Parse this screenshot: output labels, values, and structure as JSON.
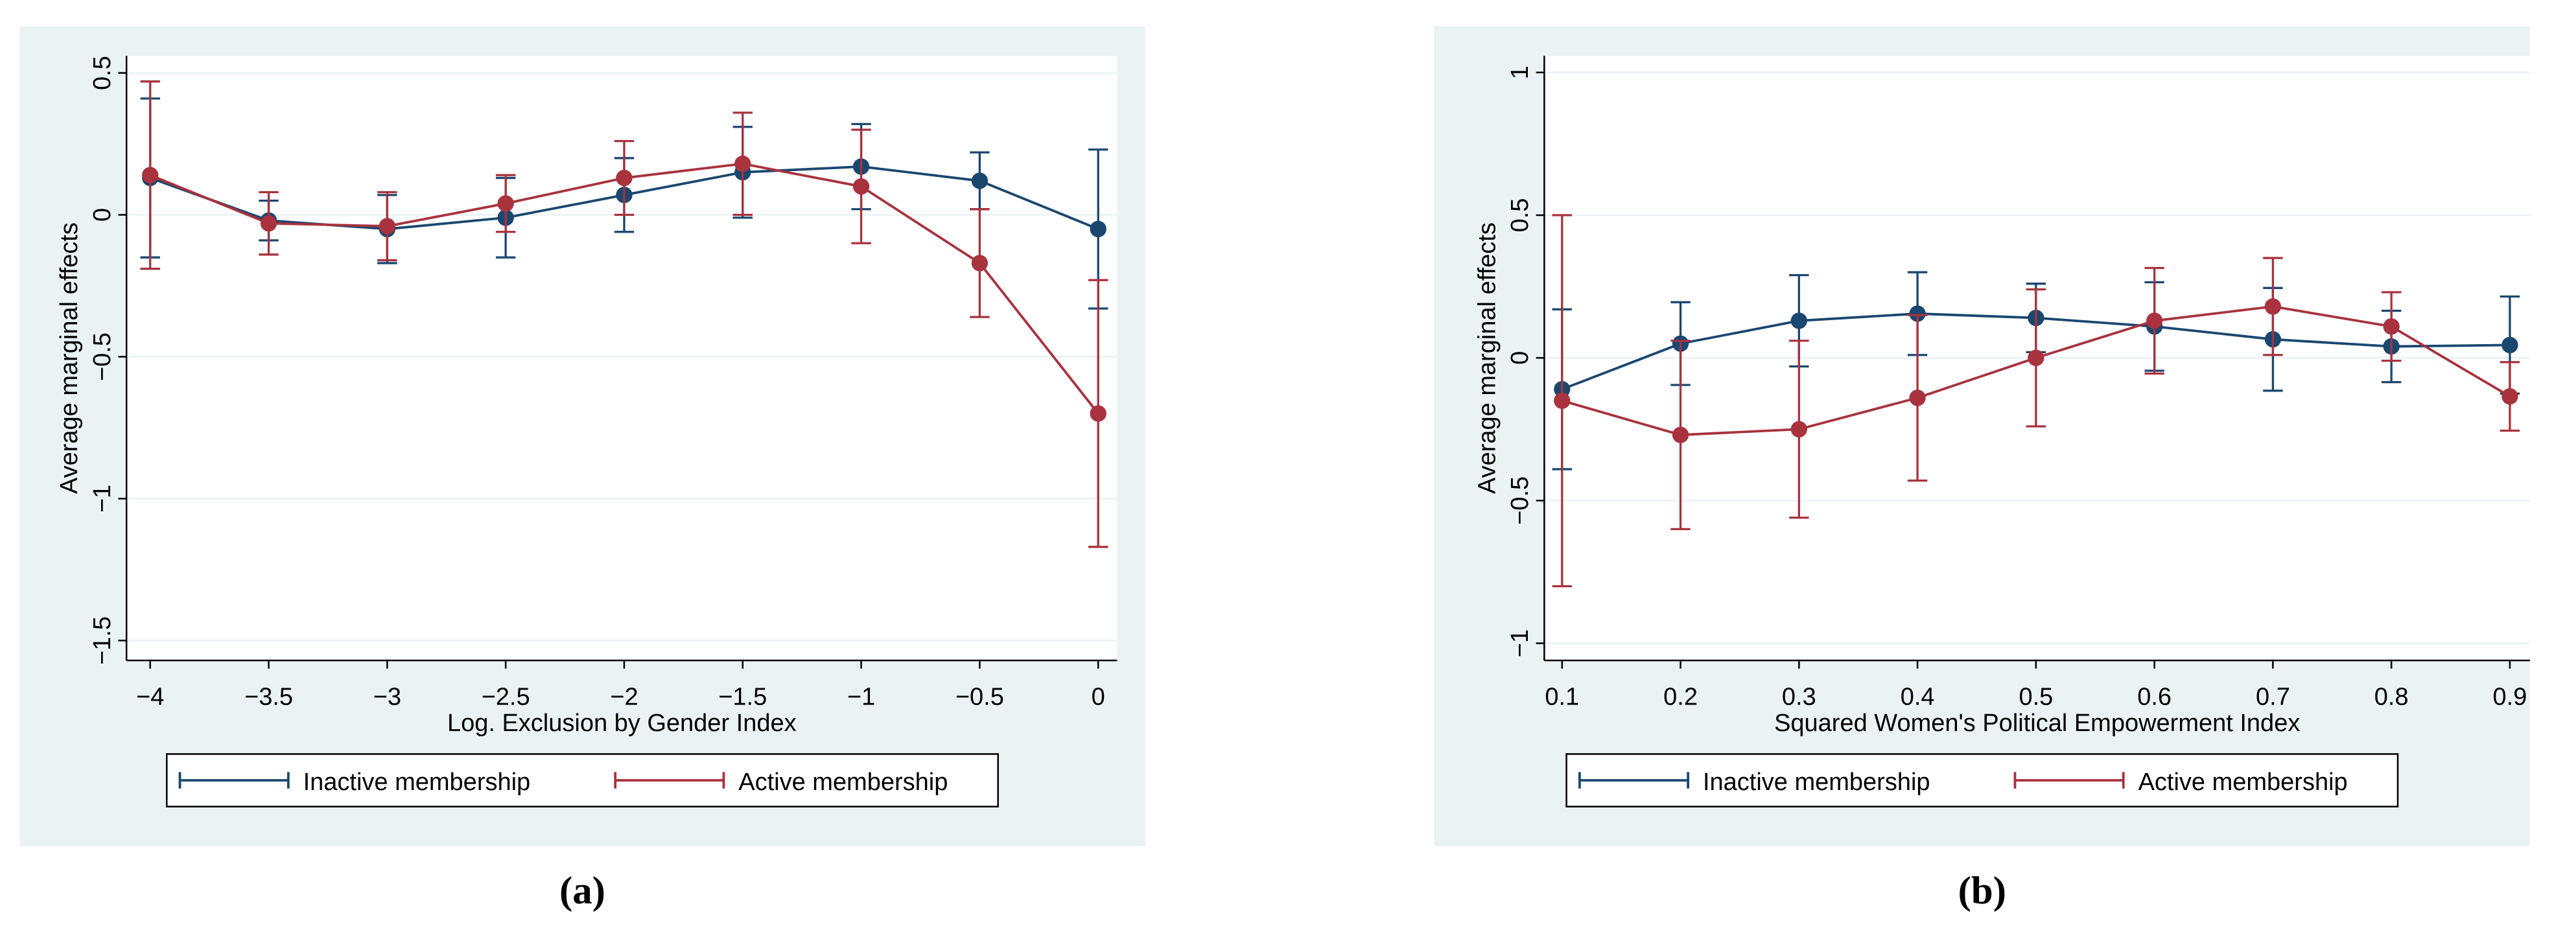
{
  "chart_data": [
    {
      "type": "errorbar-line",
      "caption": "(a)",
      "xlabel": "Log. Exclusion by Gender Index",
      "ylabel": "Average marginal effects",
      "x": [
        -4,
        -3.5,
        -3,
        -2.5,
        -2,
        -1.5,
        -1,
        -0.5,
        0
      ],
      "series": [
        {
          "name": "Inactive membership",
          "color": "#1a476f",
          "values": [
            0.13,
            -0.02,
            -0.05,
            -0.01,
            0.07,
            0.15,
            0.17,
            0.12,
            -0.05
          ],
          "errors": [
            0.28,
            0.07,
            0.12,
            0.14,
            0.13,
            0.16,
            0.15,
            0.1,
            0.28
          ]
        },
        {
          "name": "Active membership",
          "color": "#a8323e",
          "values": [
            0.14,
            -0.03,
            -0.04,
            0.04,
            0.13,
            0.18,
            0.1,
            -0.17,
            -0.7
          ],
          "errors": [
            0.33,
            0.11,
            0.12,
            0.1,
            0.13,
            0.18,
            0.2,
            0.19,
            0.47
          ]
        }
      ],
      "xlim": [
        -4.1,
        0.08
      ],
      "ylim": [
        -1.57,
        0.56
      ],
      "xticks": [
        {
          "value": -4,
          "label": "−4"
        },
        {
          "value": -3.5,
          "label": "−3.5"
        },
        {
          "value": -3,
          "label": "−3"
        },
        {
          "value": -2.5,
          "label": "−2.5"
        },
        {
          "value": -2,
          "label": "−2"
        },
        {
          "value": -1.5,
          "label": "−1.5"
        },
        {
          "value": -1,
          "label": "−1"
        },
        {
          "value": -0.5,
          "label": "−0.5"
        },
        0
      ],
      "yticks": [
        0.5,
        0,
        {
          "value": -0.5,
          "label": "−0.5"
        },
        {
          "value": -1,
          "label": "−1"
        },
        {
          "value": -1.5,
          "label": "−1.5"
        }
      ],
      "grid": true,
      "legend": "bottom"
    },
    {
      "type": "errorbar-line",
      "caption": "(b)",
      "xlabel": "Squared Women's Political Empowerment Index",
      "ylabel": "Average marginal effects",
      "x": [
        0.1,
        0.2,
        0.3,
        0.4,
        0.5,
        0.6,
        0.7,
        0.8,
        0.9
      ],
      "series": [
        {
          "name": "Inactive membership",
          "color": "#1a476f",
          "values": [
            -0.11,
            0.05,
            0.13,
            0.155,
            0.14,
            0.11,
            0.065,
            0.04,
            0.045
          ],
          "errors": [
            0.28,
            0.145,
            0.16,
            0.145,
            0.12,
            0.155,
            0.18,
            0.125,
            0.17
          ]
        },
        {
          "name": "Active membership",
          "color": "#a8323e",
          "values": [
            -0.15,
            -0.27,
            -0.25,
            -0.14,
            0,
            0.13,
            0.18,
            0.11,
            -0.135
          ],
          "errors": [
            0.65,
            0.33,
            0.31,
            0.29,
            0.24,
            0.185,
            0.17,
            0.12,
            0.12
          ]
        }
      ],
      "xlim": [
        0.085,
        0.917
      ],
      "ylim": [
        -1.06,
        1.058
      ],
      "xticks": [
        0.1,
        0.2,
        0.3,
        0.4,
        0.5,
        0.6,
        0.7,
        0.8,
        0.9
      ],
      "yticks": [
        1,
        0.5,
        0,
        {
          "value": -0.5,
          "label": "−0.5"
        },
        {
          "value": -1,
          "label": "−1"
        }
      ],
      "grid": true,
      "legend": "bottom"
    }
  ]
}
